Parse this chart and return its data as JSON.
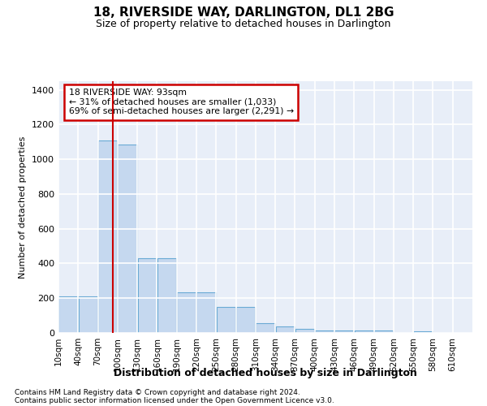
{
  "title": "18, RIVERSIDE WAY, DARLINGTON, DL1 2BG",
  "subtitle": "Size of property relative to detached houses in Darlington",
  "xlabel": "Distribution of detached houses by size in Darlington",
  "ylabel": "Number of detached properties",
  "footnote1": "Contains HM Land Registry data © Crown copyright and database right 2024.",
  "footnote2": "Contains public sector information licensed under the Open Government Licence v3.0.",
  "annotation_title": "18 RIVERSIDE WAY: 93sqm",
  "annotation_line1": "← 31% of detached houses are smaller (1,033)",
  "annotation_line2": "69% of semi-detached houses are larger (2,291) →",
  "property_size": 93,
  "bar_color": "#c5d8ef",
  "bar_edge_color": "#6aaad4",
  "vline_color": "#cc0000",
  "bg_color": "#e8eef8",
  "grid_color": "#ffffff",
  "categories": [
    "10sqm",
    "40sqm",
    "70sqm",
    "100sqm",
    "130sqm",
    "160sqm",
    "190sqm",
    "220sqm",
    "250sqm",
    "280sqm",
    "310sqm",
    "340sqm",
    "370sqm",
    "400sqm",
    "430sqm",
    "460sqm",
    "490sqm",
    "520sqm",
    "550sqm",
    "580sqm",
    "610sqm"
  ],
  "values": [
    210,
    210,
    1110,
    1085,
    430,
    430,
    233,
    233,
    148,
    148,
    57,
    38,
    25,
    12,
    12,
    15,
    15,
    0,
    10,
    0,
    0
  ],
  "bar_edges": [
    210,
    0,
    1110,
    1085,
    430,
    0,
    233,
    0,
    148,
    0,
    57,
    38,
    25,
    12,
    0,
    15,
    0,
    0,
    10,
    0,
    0
  ],
  "ylim": [
    0,
    1450
  ],
  "yticks": [
    0,
    200,
    400,
    600,
    800,
    1000,
    1200,
    1400
  ]
}
